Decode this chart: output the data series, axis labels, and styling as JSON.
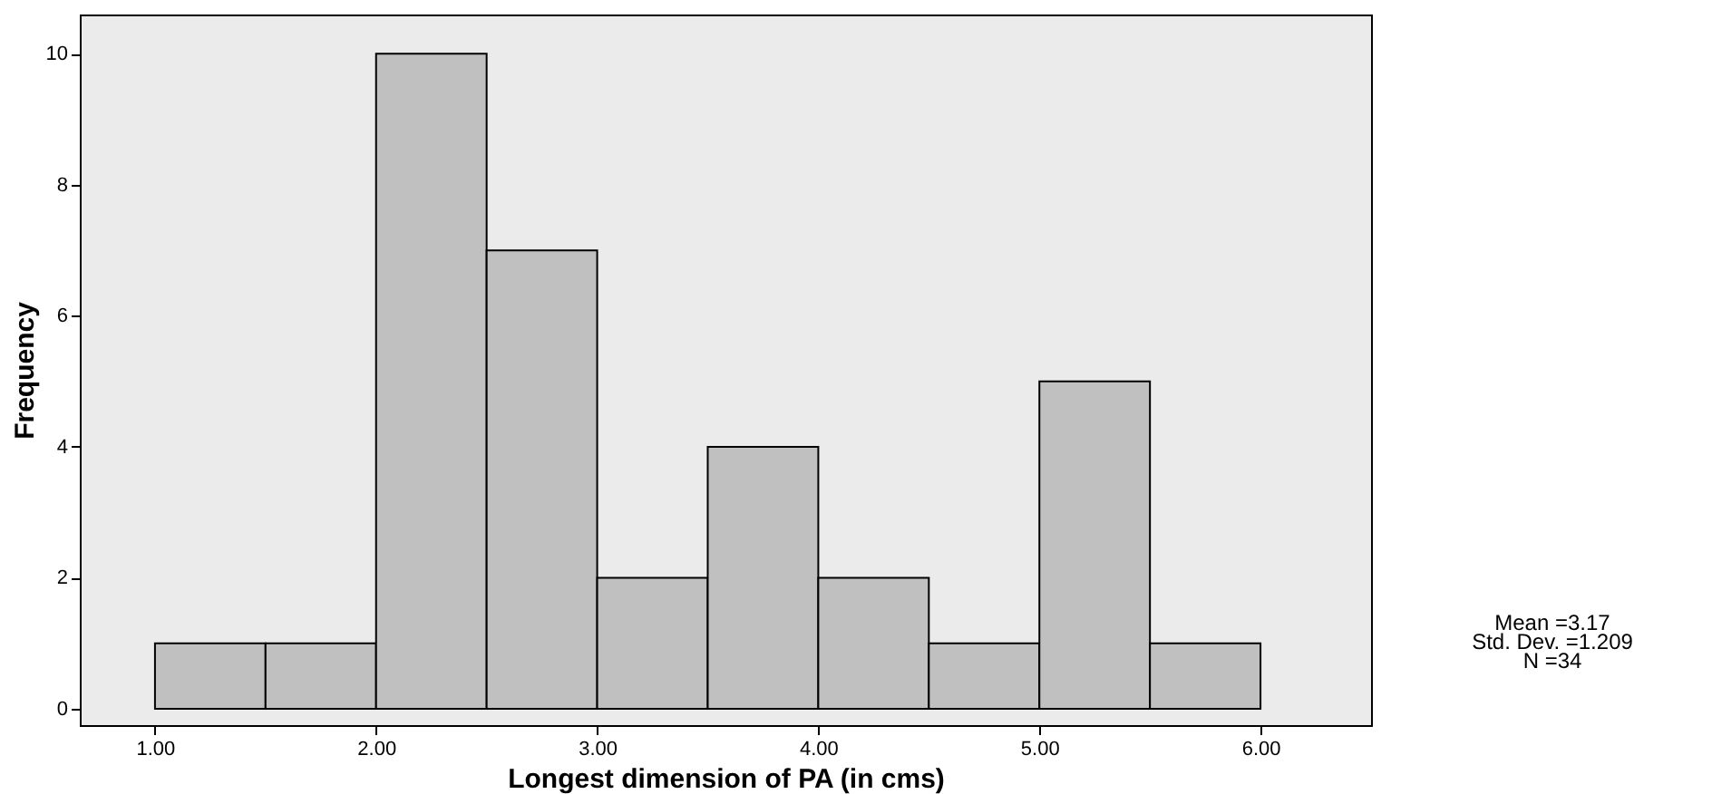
{
  "chart_data": {
    "type": "histogram",
    "xlabel": "Longest dimension of PA (in cms)",
    "ylabel": "Frequency",
    "bins": [
      1.0,
      1.5,
      2.0,
      2.5,
      3.0,
      3.5,
      4.0,
      4.5,
      5.0,
      5.5,
      6.0
    ],
    "values": [
      1,
      1,
      10,
      7,
      2,
      4,
      2,
      1,
      5,
      1
    ],
    "color": "#c0c0c0",
    "xlim": [
      0.66,
      6.5
    ],
    "ylim": [
      -0.25,
      10.6
    ],
    "xticks": [
      {
        "value": 1,
        "label": "1.00"
      },
      {
        "value": 2,
        "label": "2.00"
      },
      {
        "value": 3,
        "label": "3.00"
      },
      {
        "value": 4,
        "label": "4.00"
      },
      {
        "value": 5,
        "label": "5.00"
      },
      {
        "value": 6,
        "label": "6.00"
      }
    ],
    "yticks": [
      0,
      2,
      4,
      6,
      8,
      10
    ],
    "annotations": [
      "Mean =3.17",
      "Std. Dev. =1.209",
      "N =34"
    ],
    "grid": false
  }
}
